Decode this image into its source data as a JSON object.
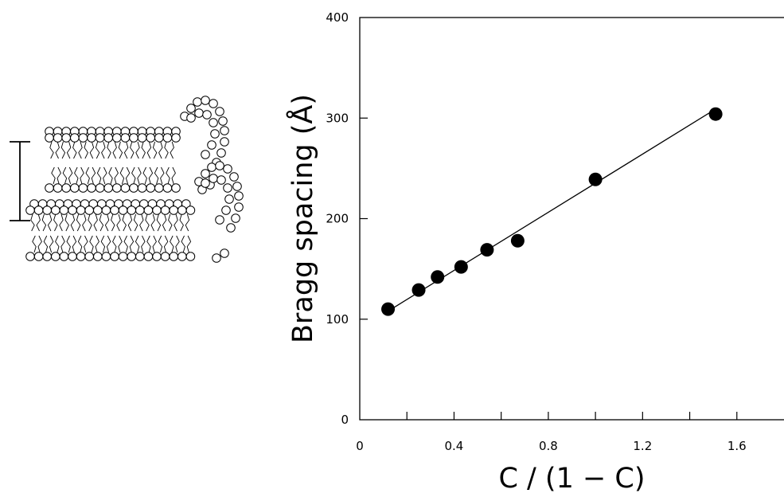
{
  "chart_data": {
    "type": "scatter",
    "title": "",
    "xlabel": "C / (1 − C)",
    "ylabel": "Bragg spacing (Å)",
    "xlim": [
      0,
      1.8
    ],
    "ylim": [
      0,
      400
    ],
    "xticks": [
      0,
      0.4,
      0.8,
      1.2,
      1.6
    ],
    "xtick_labels": [
      "0",
      "0.4",
      "0.8",
      "1.2",
      "1.6"
    ],
    "yticks": [
      0,
      100,
      200,
      300,
      400
    ],
    "ytick_labels": [
      "0",
      "100",
      "200",
      "300",
      "400"
    ],
    "series": [
      {
        "points": [
          {
            "x": 0.12,
            "y": 110
          },
          {
            "x": 0.25,
            "y": 129
          },
          {
            "x": 0.33,
            "y": 142
          },
          {
            "x": 0.43,
            "y": 152
          },
          {
            "x": 0.54,
            "y": 169
          },
          {
            "x": 0.67,
            "y": 178
          },
          {
            "x": 1.0,
            "y": 239
          },
          {
            "x": 1.51,
            "y": 304
          }
        ],
        "marker": "filled-circle",
        "color": "#000000"
      }
    ],
    "fit_line": {
      "x": [
        0.12,
        1.51
      ],
      "y": [
        108,
        309
      ]
    },
    "grid": false,
    "legend": "none",
    "illustration": "stacked-lipid-bilayers-diagram"
  }
}
